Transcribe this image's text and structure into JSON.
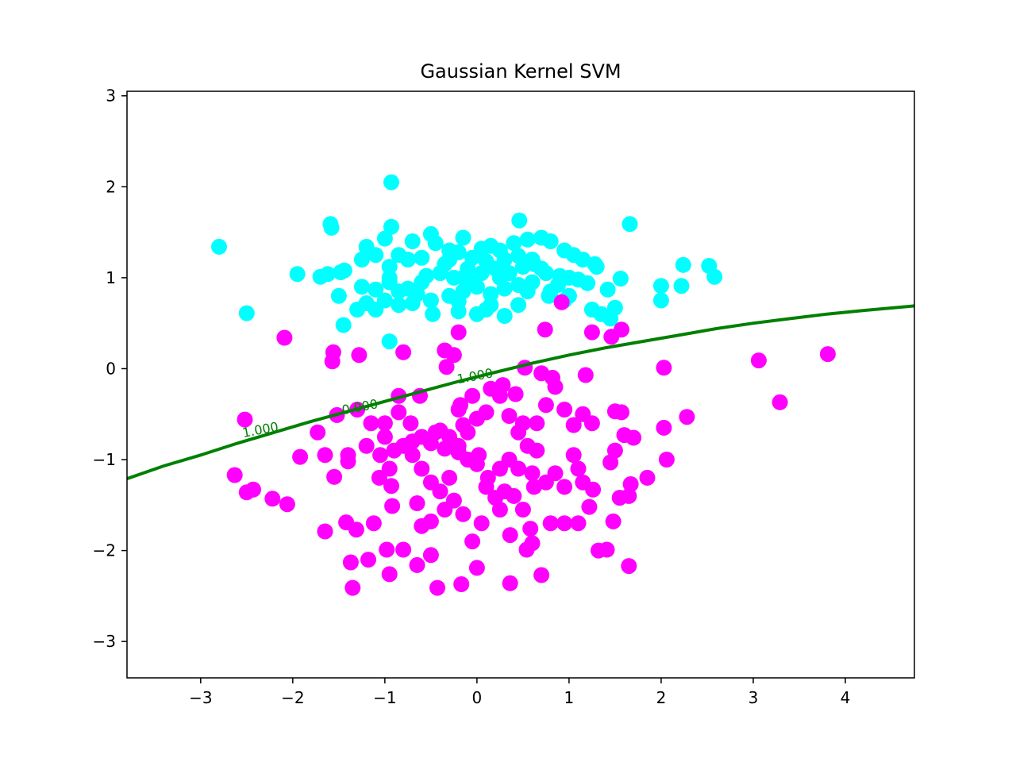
{
  "chart_data": {
    "type": "scatter",
    "title": "Gaussian Kernel SVM",
    "xlabel": "",
    "ylabel": "",
    "xlim": [
      -3.8,
      4.75
    ],
    "ylim": [
      -3.4,
      3.05
    ],
    "xticks": [
      -3,
      -2,
      -1,
      0,
      1,
      2,
      3,
      4
    ],
    "yticks": [
      -3,
      -2,
      -1,
      0,
      1,
      2,
      3
    ],
    "xtick_labels": [
      "−3",
      "−2",
      "−1",
      "0",
      "1",
      "2",
      "3",
      "4"
    ],
    "ytick_labels": [
      "−3",
      "−2",
      "−1",
      "0",
      "1",
      "2",
      "3"
    ],
    "grid": false,
    "series": [
      {
        "color": "#00ffff",
        "points": [
          [
            -0.93,
            2.05
          ],
          [
            -2.8,
            1.34
          ],
          [
            -1.59,
            1.59
          ],
          [
            -1.58,
            1.55
          ],
          [
            -0.93,
            1.56
          ],
          [
            -1.0,
            1.43
          ],
          [
            -0.5,
            1.48
          ],
          [
            -0.7,
            1.4
          ],
          [
            0.46,
            1.63
          ],
          [
            1.66,
            1.59
          ],
          [
            -1.2,
            1.34
          ],
          [
            -1.1,
            1.25
          ],
          [
            -1.25,
            1.2
          ],
          [
            -0.85,
            1.25
          ],
          [
            -0.6,
            1.22
          ],
          [
            -0.45,
            1.38
          ],
          [
            -0.3,
            1.3
          ],
          [
            -0.15,
            1.44
          ],
          [
            0.05,
            1.32
          ],
          [
            0.15,
            1.35
          ],
          [
            0.25,
            1.3
          ],
          [
            0.4,
            1.38
          ],
          [
            0.55,
            1.42
          ],
          [
            0.7,
            1.44
          ],
          [
            0.8,
            1.4
          ],
          [
            0.95,
            1.3
          ],
          [
            1.05,
            1.25
          ],
          [
            1.15,
            1.2
          ],
          [
            1.28,
            1.15
          ],
          [
            1.3,
            1.12
          ],
          [
            2.24,
            1.14
          ],
          [
            2.52,
            1.13
          ],
          [
            2.58,
            1.01
          ],
          [
            2.0,
            0.91
          ],
          [
            2.22,
            0.91
          ],
          [
            1.56,
            0.99
          ],
          [
            1.42,
            0.87
          ],
          [
            1.2,
            0.94
          ],
          [
            1.0,
            1.0
          ],
          [
            0.88,
            0.92
          ],
          [
            -1.95,
            1.04
          ],
          [
            -1.7,
            1.01
          ],
          [
            -1.62,
            1.04
          ],
          [
            -1.48,
            1.06
          ],
          [
            -1.44,
            1.08
          ],
          [
            -1.25,
            0.9
          ],
          [
            -1.1,
            0.87
          ],
          [
            -0.95,
            0.95
          ],
          [
            -0.85,
            0.85
          ],
          [
            -0.75,
            0.88
          ],
          [
            -0.6,
            0.95
          ],
          [
            -0.4,
            1.05
          ],
          [
            -0.25,
            1.0
          ],
          [
            -0.1,
            1.1
          ],
          [
            0.05,
            1.05
          ],
          [
            0.2,
            1.1
          ],
          [
            0.35,
            1.05
          ],
          [
            0.5,
            1.12
          ],
          [
            0.62,
            1.15
          ],
          [
            0.75,
            1.05
          ],
          [
            -0.3,
            1.2
          ],
          [
            -0.2,
            1.28
          ],
          [
            -0.05,
            1.22
          ],
          [
            0.1,
            1.18
          ],
          [
            0.3,
            1.2
          ],
          [
            0.45,
            1.24
          ],
          [
            0.6,
            1.2
          ],
          [
            -0.75,
            1.2
          ],
          [
            -0.95,
            1.12
          ],
          [
            -0.35,
            1.15
          ],
          [
            -1.5,
            0.8
          ],
          [
            -1.2,
            0.72
          ],
          [
            -1.0,
            0.75
          ],
          [
            -0.85,
            0.7
          ],
          [
            -0.7,
            0.72
          ],
          [
            -0.5,
            0.75
          ],
          [
            -0.3,
            0.8
          ],
          [
            -0.15,
            0.85
          ],
          [
            0.0,
            0.9
          ],
          [
            0.15,
            0.82
          ],
          [
            0.3,
            0.88
          ],
          [
            0.45,
            0.92
          ],
          [
            0.6,
            0.95
          ],
          [
            0.8,
            0.85
          ],
          [
            1.0,
            0.8
          ],
          [
            -1.45,
            0.48
          ],
          [
            -0.95,
            0.3
          ],
          [
            -0.48,
            0.6
          ],
          [
            -0.2,
            0.63
          ],
          [
            0.0,
            0.6
          ],
          [
            0.3,
            0.58
          ],
          [
            0.45,
            0.7
          ],
          [
            0.78,
            0.8
          ],
          [
            1.35,
            0.6
          ],
          [
            1.45,
            0.55
          ],
          [
            1.5,
            0.67
          ],
          [
            2.0,
            0.75
          ],
          [
            -2.5,
            0.61
          ],
          [
            -1.1,
            0.65
          ],
          [
            -0.2,
            0.74
          ],
          [
            0.15,
            0.7
          ],
          [
            1.1,
            0.98
          ],
          [
            0.9,
            1.02
          ],
          [
            0.7,
            1.1
          ],
          [
            -0.55,
            1.02
          ],
          [
            -0.05,
            0.95
          ],
          [
            0.25,
            1.0
          ],
          [
            -0.65,
            0.82
          ],
          [
            0.1,
            0.65
          ],
          [
            -1.3,
            0.65
          ],
          [
            -0.95,
            1.0
          ],
          [
            -0.15,
            1.0
          ],
          [
            0.55,
            0.85
          ],
          [
            0.95,
            0.75
          ],
          [
            1.25,
            0.65
          ]
        ]
      },
      {
        "color": "#ff00ff",
        "points": [
          [
            0.92,
            0.73
          ],
          [
            -2.09,
            0.34
          ],
          [
            -1.56,
            0.18
          ],
          [
            -1.28,
            0.15
          ],
          [
            -1.57,
            0.08
          ],
          [
            -0.8,
            0.18
          ],
          [
            -0.35,
            0.2
          ],
          [
            -0.25,
            0.15
          ],
          [
            -0.2,
            0.4
          ],
          [
            0.52,
            0.01
          ],
          [
            0.74,
            0.43
          ],
          [
            1.25,
            0.4
          ],
          [
            1.57,
            0.43
          ],
          [
            1.46,
            0.35
          ],
          [
            1.18,
            -0.07
          ],
          [
            2.03,
            0.01
          ],
          [
            3.06,
            0.09
          ],
          [
            3.81,
            0.16
          ],
          [
            3.29,
            -0.37
          ],
          [
            2.28,
            -0.53
          ],
          [
            -2.52,
            -0.56
          ],
          [
            -1.73,
            -0.7
          ],
          [
            -1.52,
            -0.51
          ],
          [
            -1.3,
            -0.45
          ],
          [
            -1.15,
            -0.6
          ],
          [
            -1.0,
            -0.75
          ],
          [
            -0.9,
            -0.9
          ],
          [
            -0.85,
            -0.48
          ],
          [
            -0.72,
            -0.6
          ],
          [
            -0.6,
            -0.75
          ],
          [
            -0.5,
            -0.82
          ],
          [
            -0.4,
            -0.68
          ],
          [
            -0.3,
            -0.75
          ],
          [
            -0.2,
            -0.85
          ],
          [
            -0.1,
            -0.7
          ],
          [
            0.0,
            -0.55
          ],
          [
            0.1,
            -0.48
          ],
          [
            0.25,
            -0.3
          ],
          [
            0.35,
            -0.52
          ],
          [
            0.45,
            -0.7
          ],
          [
            0.55,
            -0.85
          ],
          [
            0.65,
            -0.6
          ],
          [
            0.75,
            -0.4
          ],
          [
            0.85,
            -0.2
          ],
          [
            0.95,
            -0.45
          ],
          [
            1.05,
            -0.62
          ],
          [
            1.15,
            -0.5
          ],
          [
            1.25,
            -0.6
          ],
          [
            0.7,
            -0.05
          ],
          [
            0.82,
            -0.1
          ],
          [
            1.5,
            -0.47
          ],
          [
            1.57,
            -0.48
          ],
          [
            1.6,
            -0.73
          ],
          [
            1.7,
            -0.76
          ],
          [
            1.5,
            -0.9
          ],
          [
            1.45,
            -1.03
          ],
          [
            2.03,
            -0.65
          ],
          [
            2.06,
            -1.0
          ],
          [
            1.85,
            -1.2
          ],
          [
            1.67,
            -1.27
          ],
          [
            1.65,
            -1.4
          ],
          [
            1.55,
            -1.42
          ],
          [
            1.48,
            -1.68
          ],
          [
            1.41,
            -1.99
          ],
          [
            1.32,
            -2.0
          ],
          [
            1.26,
            -1.33
          ],
          [
            1.22,
            -1.52
          ],
          [
            1.1,
            -1.1
          ],
          [
            1.05,
            -0.95
          ],
          [
            0.95,
            -1.3
          ],
          [
            0.85,
            -1.15
          ],
          [
            0.75,
            -1.25
          ],
          [
            0.62,
            -1.3
          ],
          [
            0.5,
            -1.55
          ],
          [
            0.45,
            -1.1
          ],
          [
            0.35,
            -1.0
          ],
          [
            0.25,
            -1.1
          ],
          [
            0.12,
            -1.2
          ],
          [
            0.0,
            -1.05
          ],
          [
            -0.1,
            -1.0
          ],
          [
            -0.2,
            -0.92
          ],
          [
            -0.3,
            -1.2
          ],
          [
            -0.4,
            -1.35
          ],
          [
            -0.5,
            -1.25
          ],
          [
            -0.6,
            -1.1
          ],
          [
            -0.7,
            -0.95
          ],
          [
            -0.8,
            -0.85
          ],
          [
            -0.95,
            -1.1
          ],
          [
            -1.05,
            -0.95
          ],
          [
            -1.2,
            -0.85
          ],
          [
            -1.4,
            -0.95
          ],
          [
            -1.4,
            -1.02
          ],
          [
            -1.65,
            -0.95
          ],
          [
            -1.92,
            -0.97
          ],
          [
            -2.63,
            -1.17
          ],
          [
            -2.5,
            -1.36
          ],
          [
            -2.43,
            -1.33
          ],
          [
            -2.22,
            -1.43
          ],
          [
            -2.06,
            -1.49
          ],
          [
            -1.65,
            -1.79
          ],
          [
            -1.55,
            -1.19
          ],
          [
            -1.42,
            -1.69
          ],
          [
            -1.31,
            -1.77
          ],
          [
            -1.12,
            -1.7
          ],
          [
            -1.06,
            -1.2
          ],
          [
            -0.93,
            -1.29
          ],
          [
            -0.92,
            -1.51
          ],
          [
            -0.65,
            -1.48
          ],
          [
            -0.6,
            -1.73
          ],
          [
            -0.5,
            -1.68
          ],
          [
            -0.5,
            -2.05
          ],
          [
            -0.65,
            -2.16
          ],
          [
            -0.8,
            -1.99
          ],
          [
            -0.98,
            -1.99
          ],
          [
            -0.95,
            -2.26
          ],
          [
            -1.18,
            -2.1
          ],
          [
            -1.37,
            -2.13
          ],
          [
            -1.35,
            -2.41
          ],
          [
            -0.43,
            -2.41
          ],
          [
            -0.17,
            -2.37
          ],
          [
            0.0,
            -2.19
          ],
          [
            0.36,
            -2.36
          ],
          [
            0.7,
            -2.27
          ],
          [
            0.54,
            -1.99
          ],
          [
            0.6,
            -1.92
          ],
          [
            0.58,
            -1.76
          ],
          [
            0.36,
            -1.83
          ],
          [
            0.25,
            -1.55
          ],
          [
            0.05,
            -1.7
          ],
          [
            -0.05,
            -1.9
          ],
          [
            -0.15,
            -1.6
          ],
          [
            -0.25,
            -1.45
          ],
          [
            -0.35,
            -1.55
          ],
          [
            0.1,
            -1.3
          ],
          [
            0.2,
            -1.42
          ],
          [
            0.3,
            -1.35
          ],
          [
            0.4,
            -1.4
          ],
          [
            0.6,
            -1.15
          ],
          [
            0.8,
            -1.7
          ],
          [
            0.95,
            -1.7
          ],
          [
            1.1,
            -1.7
          ],
          [
            1.65,
            -2.17
          ],
          [
            1.15,
            -1.25
          ],
          [
            0.65,
            -0.9
          ],
          [
            0.5,
            -0.6
          ],
          [
            0.15,
            -0.22
          ],
          [
            -0.05,
            -0.3
          ],
          [
            -0.2,
            -0.45
          ],
          [
            0.02,
            -0.95
          ],
          [
            -0.15,
            -0.62
          ],
          [
            -0.35,
            -0.88
          ],
          [
            -0.45,
            -0.7
          ],
          [
            -0.7,
            -0.8
          ],
          [
            -0.85,
            -0.3
          ],
          [
            -0.62,
            -0.3
          ],
          [
            -0.33,
            0.02
          ],
          [
            -0.18,
            -0.4
          ],
          [
            0.28,
            -0.18
          ],
          [
            0.42,
            -0.28
          ],
          [
            -1.0,
            -0.6
          ]
        ]
      }
    ],
    "decision_boundary": {
      "color": "#008000",
      "points": [
        [
          -3.8,
          -1.21
        ],
        [
          -3.4,
          -1.07
        ],
        [
          -3.0,
          -0.95
        ],
        [
          -2.6,
          -0.82
        ],
        [
          -2.2,
          -0.7
        ],
        [
          -1.8,
          -0.58
        ],
        [
          -1.4,
          -0.47
        ],
        [
          -1.0,
          -0.36
        ],
        [
          -0.6,
          -0.25
        ],
        [
          -0.2,
          -0.14
        ],
        [
          0.2,
          -0.04
        ],
        [
          0.6,
          0.06
        ],
        [
          1.0,
          0.15
        ],
        [
          1.4,
          0.23
        ],
        [
          1.8,
          0.3
        ],
        [
          2.2,
          0.37
        ],
        [
          2.6,
          0.44
        ],
        [
          3.0,
          0.5
        ],
        [
          3.4,
          0.55
        ],
        [
          3.8,
          0.6
        ],
        [
          4.2,
          0.64
        ],
        [
          4.75,
          0.69
        ]
      ],
      "labels": [
        {
          "text": "1.000",
          "x": -2.35,
          "y": -0.68
        },
        {
          "text": "0.000",
          "x": -1.27,
          "y": -0.43
        },
        {
          "text": "1.000",
          "x": -0.02,
          "y": -0.09
        }
      ]
    }
  }
}
